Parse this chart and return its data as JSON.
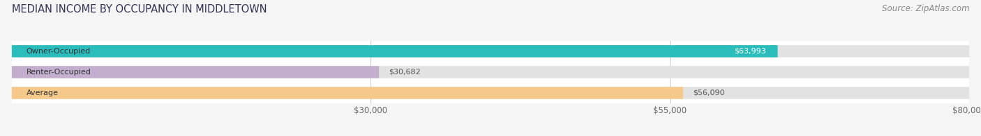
{
  "title": "MEDIAN INCOME BY OCCUPANCY IN MIDDLETOWN",
  "source": "Source: ZipAtlas.com",
  "categories": [
    "Owner-Occupied",
    "Renter-Occupied",
    "Average"
  ],
  "values": [
    63993,
    30682,
    56090
  ],
  "bar_colors": [
    "#2bbcbc",
    "#c4aed0",
    "#f5c98a"
  ],
  "value_labels": [
    "$63,993",
    "$30,682",
    "$56,090"
  ],
  "value_label_inside": [
    true,
    false,
    false
  ],
  "value_label_colors": [
    "#ffffff",
    "#555555",
    "#555555"
  ],
  "xlim": [
    0,
    80000
  ],
  "xticks": [
    30000,
    55000,
    80000
  ],
  "xtick_labels": [
    "$30,000",
    "$55,000",
    "$80,000"
  ],
  "title_fontsize": 10.5,
  "source_fontsize": 8.5,
  "bar_label_fontsize": 8,
  "value_label_fontsize": 8,
  "background_color": "#f5f5f5",
  "bar_bg_color": "#e2e2e2",
  "bar_height": 0.58,
  "plot_bg_color": "#ffffff"
}
